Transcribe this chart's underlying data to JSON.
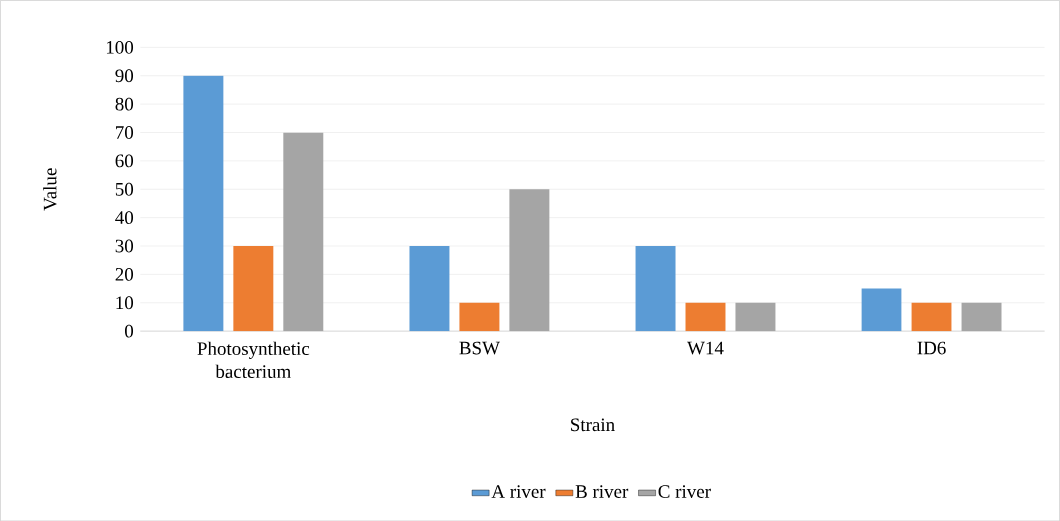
{
  "chart_data": {
    "type": "bar",
    "xlabel": "Strain",
    "ylabel": "Value",
    "categories": [
      "Photosynthetic bacterium",
      "BSW",
      "W14",
      "ID6"
    ],
    "series": [
      {
        "name": "A river",
        "color": "#5b9bd5",
        "values": [
          90,
          30,
          30,
          15
        ]
      },
      {
        "name": "B river",
        "color": "#ed7d31",
        "values": [
          30,
          10,
          10,
          10
        ]
      },
      {
        "name": "C river",
        "color": "#a5a5a5",
        "values": [
          70,
          50,
          10,
          10
        ]
      }
    ],
    "ylim": [
      0,
      100
    ],
    "yticks": [
      0,
      10,
      20,
      30,
      40,
      50,
      60,
      70,
      80,
      90,
      100
    ],
    "grid": "y",
    "legend": "bottom"
  }
}
